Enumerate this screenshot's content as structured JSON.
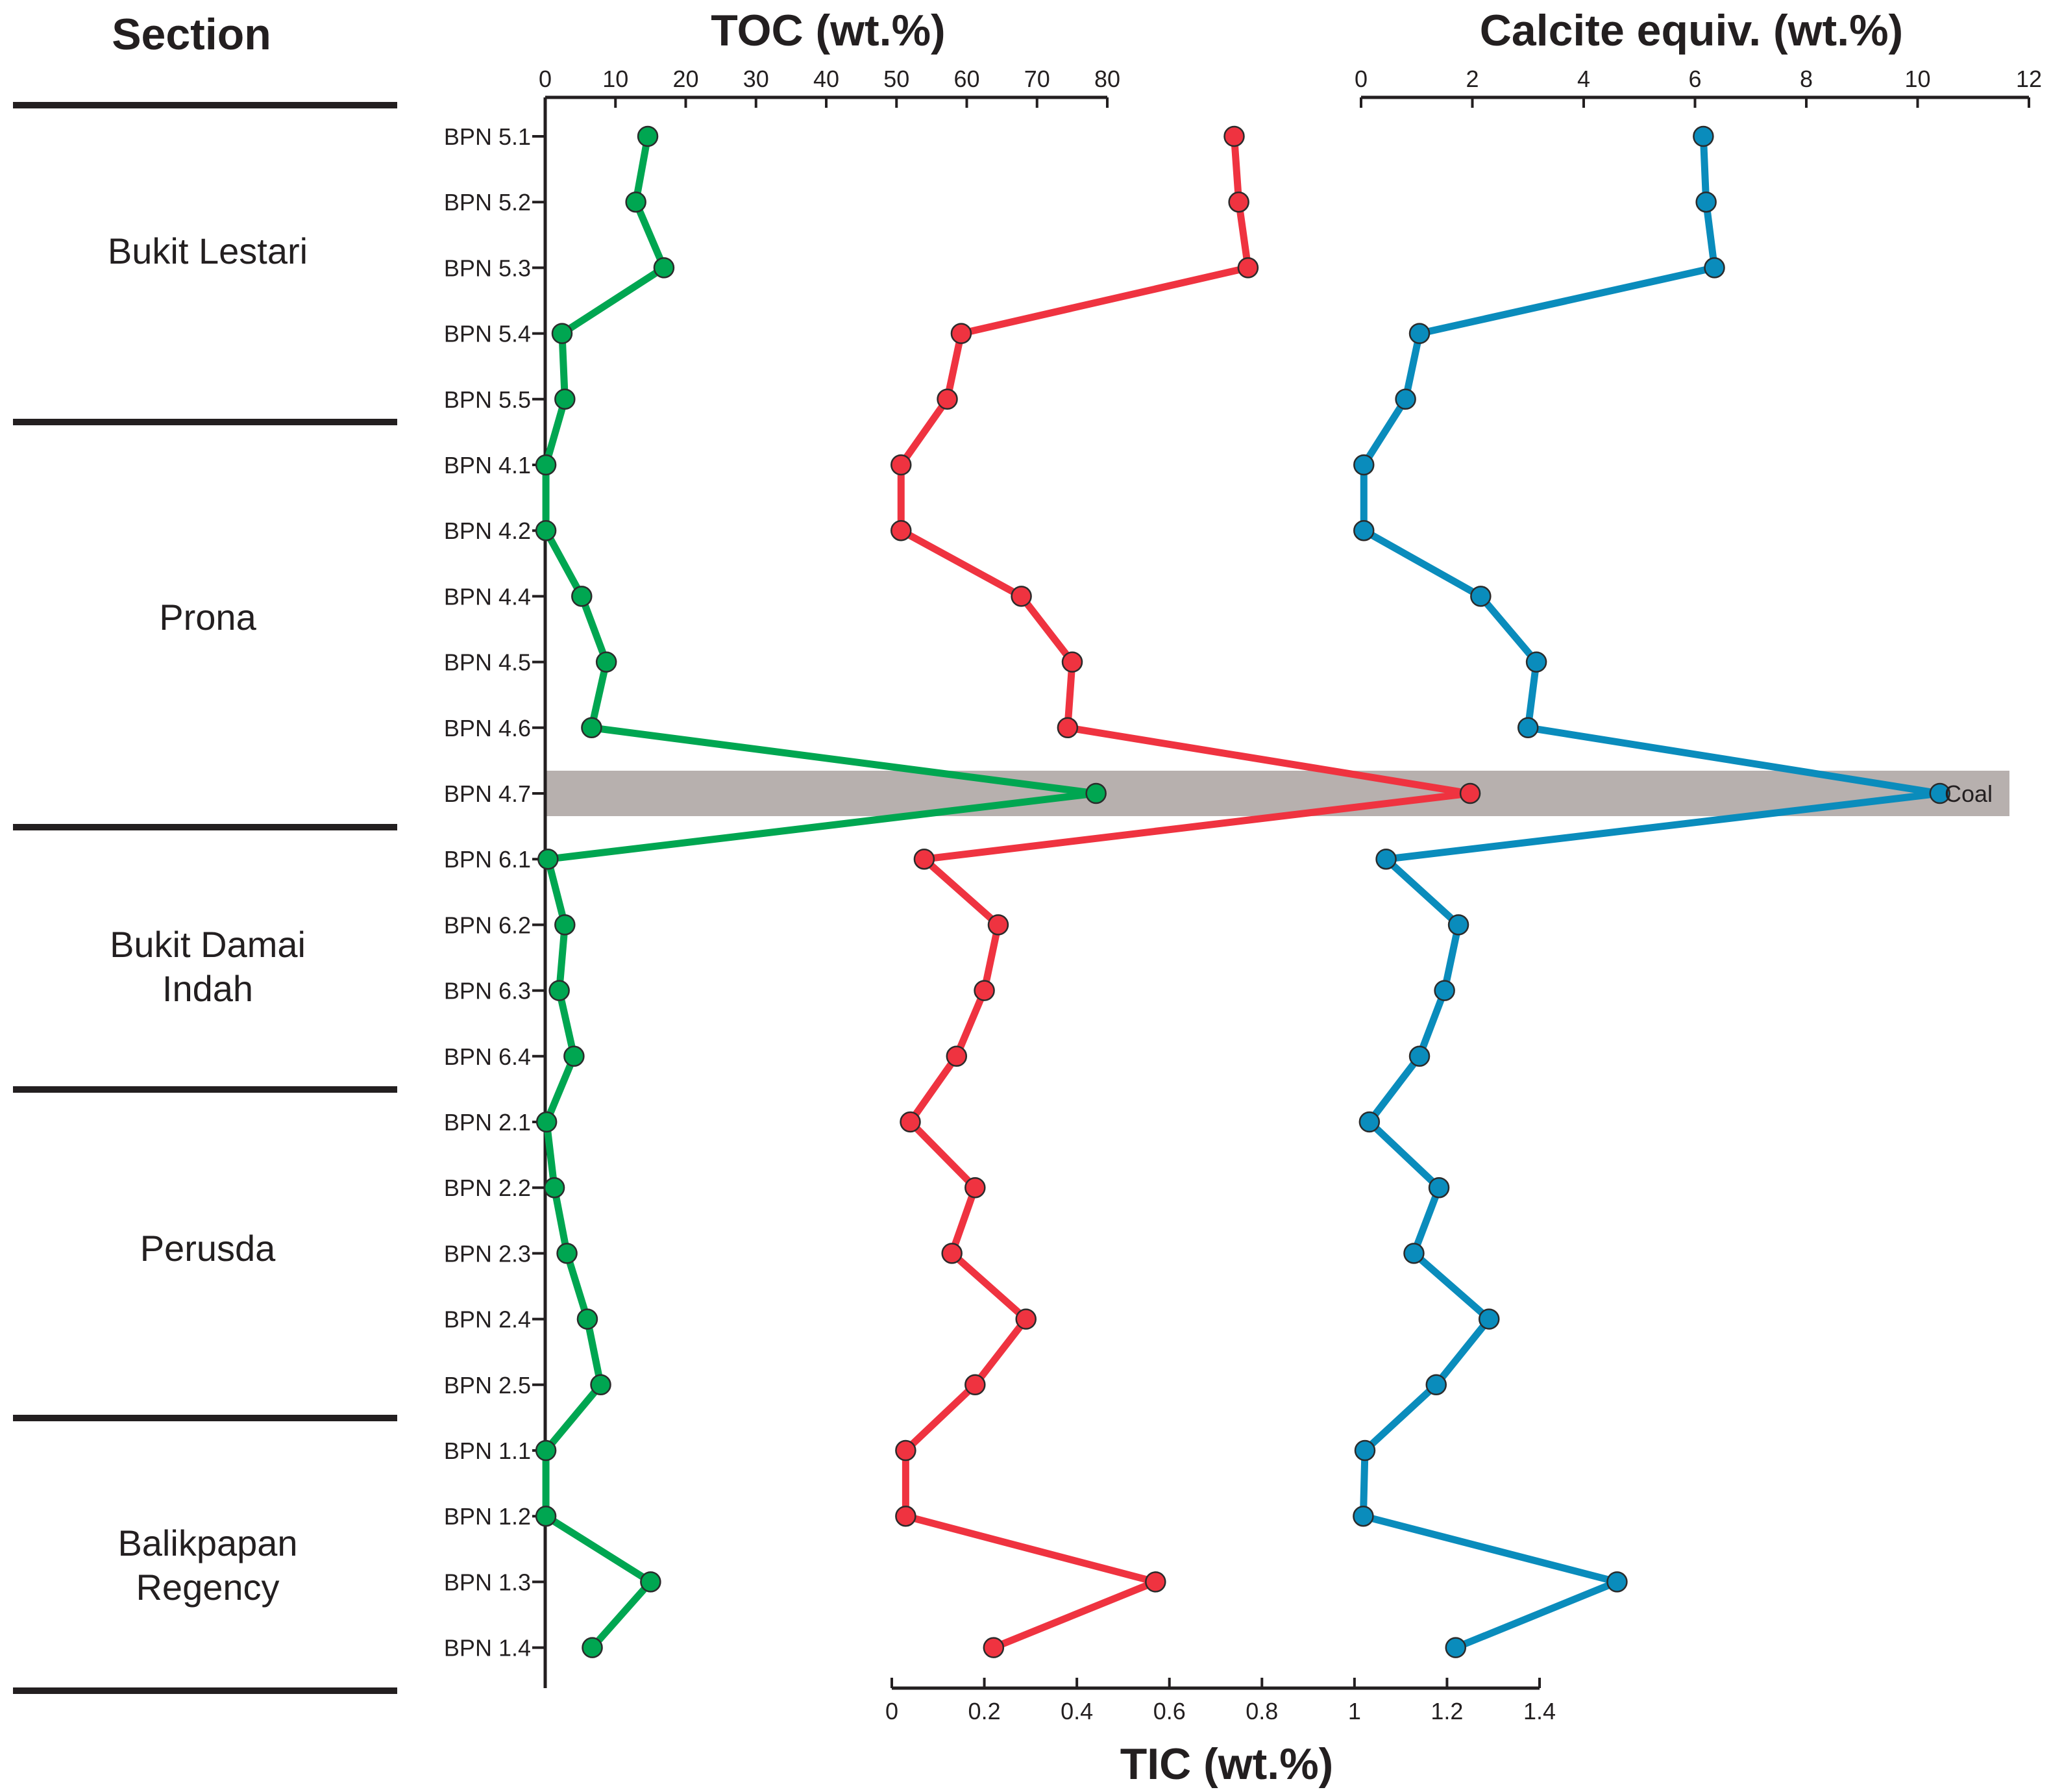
{
  "titles": {
    "section": "Section",
    "toc": "TOC (wt.%)",
    "calcite": "Calcite equiv. (wt.%)",
    "tic": "TIC (wt.%)"
  },
  "sections": [
    {
      "name": "Bukit Lestari",
      "lines": [
        "Bukit Lestari"
      ]
    },
    {
      "name": "Prona",
      "lines": [
        "Prona"
      ]
    },
    {
      "name": "Bukit Damai Indah",
      "lines": [
        "Bukit Damai",
        "Indah"
      ]
    },
    {
      "name": "Perusda",
      "lines": [
        "Perusda"
      ]
    },
    {
      "name": "Balikpapan Regency",
      "lines": [
        "Balikpapan",
        "Regency"
      ]
    }
  ],
  "highlight": {
    "sample": "BPN 4.7",
    "label": "Coal",
    "color": "#b7b0ae"
  },
  "colors": {
    "toc": "#00a651",
    "tic": "#ef3340",
    "calcite": "#0a8cbc",
    "text": "#231f20"
  },
  "chart_data": {
    "type": "line",
    "orientation": "vertical-profile",
    "samples": [
      "BPN 5.1",
      "BPN 5.2",
      "BPN 5.3",
      "BPN 5.4",
      "BPN 5.5",
      "BPN 4.1",
      "BPN 4.2",
      "BPN 4.4",
      "BPN 4.5",
      "BPN 4.6",
      "BPN 4.7",
      "BPN 6.1",
      "BPN 6.2",
      "BPN 6.3",
      "BPN 6.4",
      "BPN 2.1",
      "BPN 2.2",
      "BPN 2.3",
      "BPN 2.4",
      "BPN 2.5",
      "BPN 1.1",
      "BPN 1.2",
      "BPN 1.3",
      "BPN 1.4"
    ],
    "series": [
      {
        "name": "TOC",
        "unit": "wt.%",
        "axis": "top-left",
        "values": [
          14.6,
          12.9,
          16.9,
          2.4,
          2.8,
          0.1,
          0.1,
          5.2,
          8.7,
          6.6,
          78.4,
          0.4,
          2.8,
          2.0,
          4.1,
          0.2,
          1.3,
          3.1,
          6.0,
          7.9,
          0.1,
          0.1,
          15.0,
          6.7
        ]
      },
      {
        "name": "TIC",
        "unit": "wt.%",
        "axis": "bottom",
        "values": [
          0.74,
          0.75,
          0.77,
          0.15,
          0.12,
          0.02,
          0.02,
          0.28,
          0.39,
          0.38,
          1.25,
          0.07,
          0.23,
          0.2,
          0.14,
          0.04,
          0.18,
          0.13,
          0.29,
          0.18,
          0.03,
          0.03,
          0.57,
          0.22
        ]
      },
      {
        "name": "Calcite equiv.",
        "unit": "wt.%",
        "axis": "top-right",
        "values": [
          6.15,
          6.2,
          6.35,
          1.05,
          0.8,
          0.05,
          0.05,
          2.15,
          3.15,
          3.0,
          10.4,
          0.45,
          1.75,
          1.5,
          1.05,
          0.15,
          1.4,
          0.95,
          2.3,
          1.35,
          0.07,
          0.04,
          4.6,
          1.7
        ]
      }
    ],
    "axes": {
      "toc": {
        "title": "TOC (wt.%)",
        "range": [
          0,
          80
        ],
        "ticks": [
          "0",
          "10",
          "20",
          "30",
          "40",
          "50",
          "60",
          "70",
          "80"
        ]
      },
      "tic": {
        "title": "TIC (wt.%)",
        "range": [
          0,
          1.4
        ],
        "ticks": [
          "0",
          "0.2",
          "0.4",
          "0.6",
          "0.8",
          "1",
          "1.2",
          "1.4"
        ]
      },
      "calcite": {
        "title": "Calcite equiv. (wt.%)",
        "range": [
          0,
          12
        ],
        "ticks": [
          "0",
          "2",
          "4",
          "6",
          "8",
          "10",
          "12"
        ]
      }
    }
  }
}
